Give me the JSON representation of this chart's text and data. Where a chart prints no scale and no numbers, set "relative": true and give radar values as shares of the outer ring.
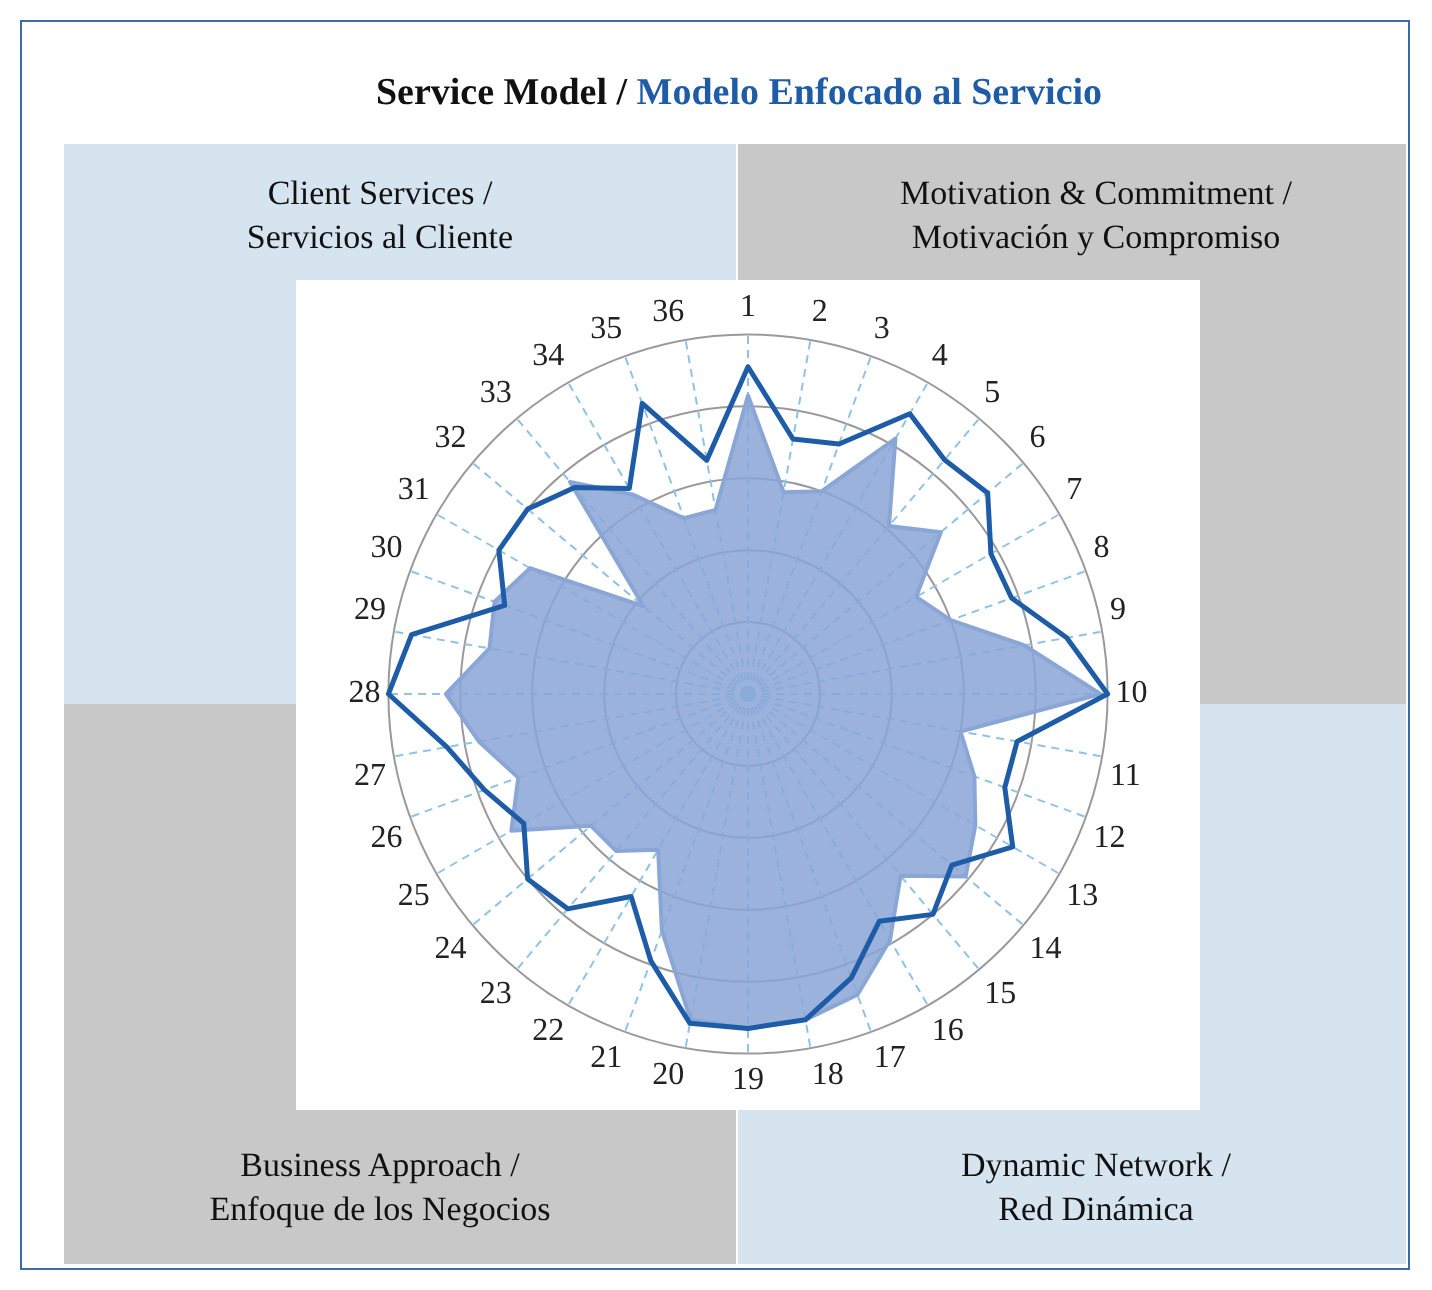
{
  "chart_data": {
    "type": "radar",
    "title": "Service Model / Modelo Enfocado al Servicio",
    "relative": true,
    "legend": false,
    "grid": true,
    "marker": "none",
    "categories": [
      "1",
      "2",
      "3",
      "4",
      "5",
      "6",
      "7",
      "8",
      "9",
      "10",
      "11",
      "12",
      "13",
      "14",
      "15",
      "16",
      "17",
      "18",
      "19",
      "20",
      "21",
      "22",
      "23",
      "24",
      "25",
      "26",
      "27",
      "28",
      "29",
      "30",
      "31",
      "32",
      "33",
      "34",
      "35",
      "36"
    ],
    "annotations": [
      "Client Services / Servicios al Cliente",
      "Motivation & Commitment / Motivación y Compromiso",
      "Business Approach / Enfoque de los Negocios",
      "Dynamic Network / Red Dinámica"
    ],
    "series": [
      {
        "color": "#1f5ca8",
        "values": [
          0.91,
          0.72,
          0.74,
          0.9,
          0.85,
          0.87,
          0.78,
          0.78,
          0.9,
          1.0,
          0.76,
          0.76,
          0.85,
          0.74,
          0.8,
          0.73,
          0.84,
          0.92,
          0.93,
          0.93,
          0.79,
          0.65,
          0.78,
          0.8,
          0.72,
          0.78,
          0.85,
          1.0,
          0.95,
          0.72,
          0.8,
          0.8,
          0.75,
          0.66,
          0.86,
          0.66
        ]
      },
      {
        "color": "#8aa6d6",
        "values": [
          0.83,
          0.57,
          0.6,
          0.82,
          0.61,
          0.7,
          0.54,
          0.6,
          0.78,
          0.98,
          0.6,
          0.67,
          0.73,
          0.79,
          0.66,
          0.79,
          0.89,
          0.92,
          0.93,
          0.92,
          0.7,
          0.5,
          0.57,
          0.57,
          0.76,
          0.68,
          0.76,
          0.84,
          0.73,
          0.75,
          0.7,
          0.38,
          0.77,
          0.64,
          0.52,
          0.52
        ]
      }
    ]
  }
}
